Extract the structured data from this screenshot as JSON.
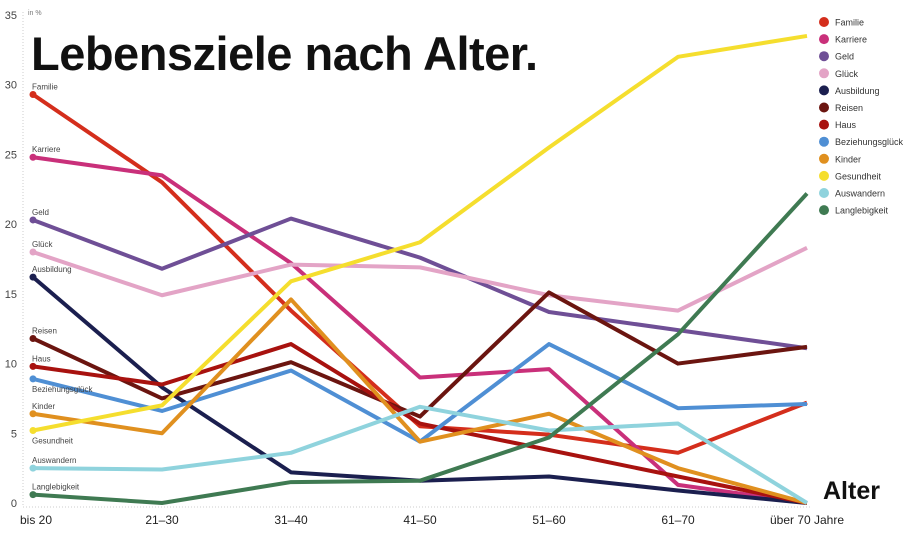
{
  "chart_data": {
    "type": "line",
    "title": "Lebensziele nach Alter.",
    "xlabel": "Alter",
    "ylabel": "in %",
    "ylim": [
      0,
      35
    ],
    "yticks": [
      0,
      5,
      10,
      15,
      20,
      25,
      30,
      35
    ],
    "categories": [
      "bis 20",
      "21–30",
      "31–40",
      "41–50",
      "51–60",
      "61–70",
      "über 70 Jahre"
    ],
    "legend_position": "top-right",
    "grid": false,
    "series": [
      {
        "name": "Familie",
        "color": "#d42e1c",
        "values": [
          29.3,
          23.0,
          13.8,
          5.5,
          4.9,
          3.6,
          7.2
        ]
      },
      {
        "name": "Karriere",
        "color": "#c9307a",
        "values": [
          24.8,
          23.5,
          17.2,
          9.0,
          9.6,
          1.3,
          0
        ]
      },
      {
        "name": "Geld",
        "color": "#6f4f96",
        "values": [
          20.3,
          16.8,
          20.4,
          17.6,
          13.7,
          12.4,
          11.1
        ]
      },
      {
        "name": "Glück",
        "color": "#e3a4c6",
        "values": [
          18.0,
          14.9,
          17.1,
          16.9,
          14.9,
          13.8,
          18.3
        ]
      },
      {
        "name": "Ausbildung",
        "color": "#1b1f4f",
        "values": [
          16.2,
          8.3,
          2.2,
          1.6,
          1.9,
          0.9,
          0
        ]
      },
      {
        "name": "Reisen",
        "color": "#6b1510",
        "values": [
          11.8,
          7.5,
          10.1,
          6.2,
          15.1,
          10.0,
          11.2
        ]
      },
      {
        "name": "Haus",
        "color": "#a8120f",
        "values": [
          9.8,
          8.5,
          11.4,
          5.7,
          3.8,
          1.9,
          0
        ]
      },
      {
        "name": "Beziehungsglück",
        "color": "#4f8fd4",
        "values": [
          8.9,
          6.6,
          9.5,
          4.4,
          11.4,
          6.8,
          7.1
        ]
      },
      {
        "name": "Kinder",
        "color": "#e0901f",
        "values": [
          6.4,
          5.0,
          14.6,
          4.4,
          6.4,
          2.5,
          0
        ]
      },
      {
        "name": "Gesundheit",
        "color": "#f5de2e",
        "values": [
          5.2,
          7.0,
          15.9,
          18.7,
          25.5,
          32.0,
          33.5
        ]
      },
      {
        "name": "Auswandern",
        "color": "#8fd3dd",
        "values": [
          2.5,
          2.4,
          3.6,
          6.9,
          5.2,
          5.7,
          0
        ]
      },
      {
        "name": "Langlebigkeit",
        "color": "#3f7a52",
        "values": [
          0.6,
          0.0,
          1.5,
          1.6,
          4.7,
          12.1,
          22.2
        ]
      }
    ]
  }
}
